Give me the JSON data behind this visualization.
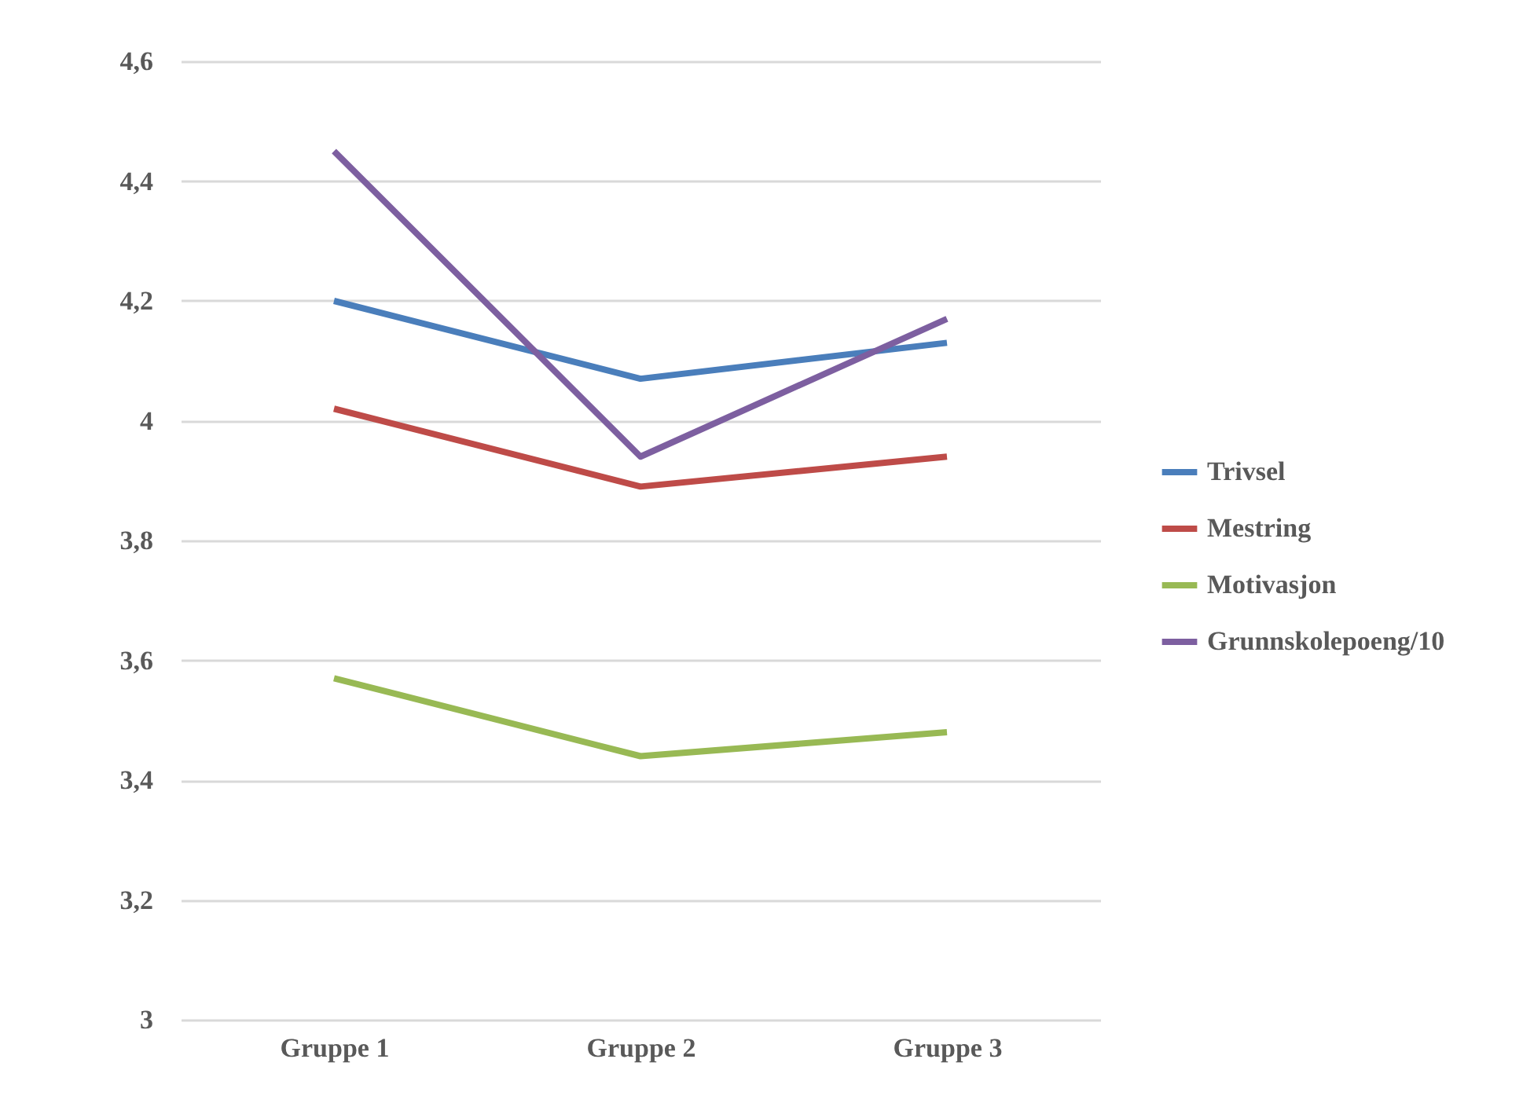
{
  "chart_data": {
    "type": "line",
    "categories": [
      "Gruppe 1",
      "Gruppe 2",
      "Gruppe 3"
    ],
    "series": [
      {
        "name": "Trivsel",
        "color": "#4a7ebb",
        "values": [
          4.2,
          4.07,
          4.13
        ]
      },
      {
        "name": "Mestring",
        "color": "#be4b48",
        "values": [
          4.02,
          3.89,
          3.94
        ]
      },
      {
        "name": "Motivasjon",
        "color": "#98b954",
        "values": [
          3.57,
          3.44,
          3.48
        ]
      },
      {
        "name": "Grunnskolepoeng/10",
        "color": "#7d5fa0",
        "values": [
          4.45,
          3.94,
          4.17
        ]
      }
    ],
    "ylim": [
      3,
      4.6
    ],
    "yticks": [
      {
        "value": 3,
        "label": "3"
      },
      {
        "value": 3.2,
        "label": "3,2"
      },
      {
        "value": 3.4,
        "label": "3,4"
      },
      {
        "value": 3.6,
        "label": "3,6"
      },
      {
        "value": 3.8,
        "label": "3,8"
      },
      {
        "value": 4,
        "label": "4"
      },
      {
        "value": 4.2,
        "label": "4,2"
      },
      {
        "value": 4.4,
        "label": "4,4"
      },
      {
        "value": 4.6,
        "label": "4,6"
      }
    ],
    "grid": "y",
    "legend": "right",
    "marker": "none",
    "line_style": "solid"
  }
}
